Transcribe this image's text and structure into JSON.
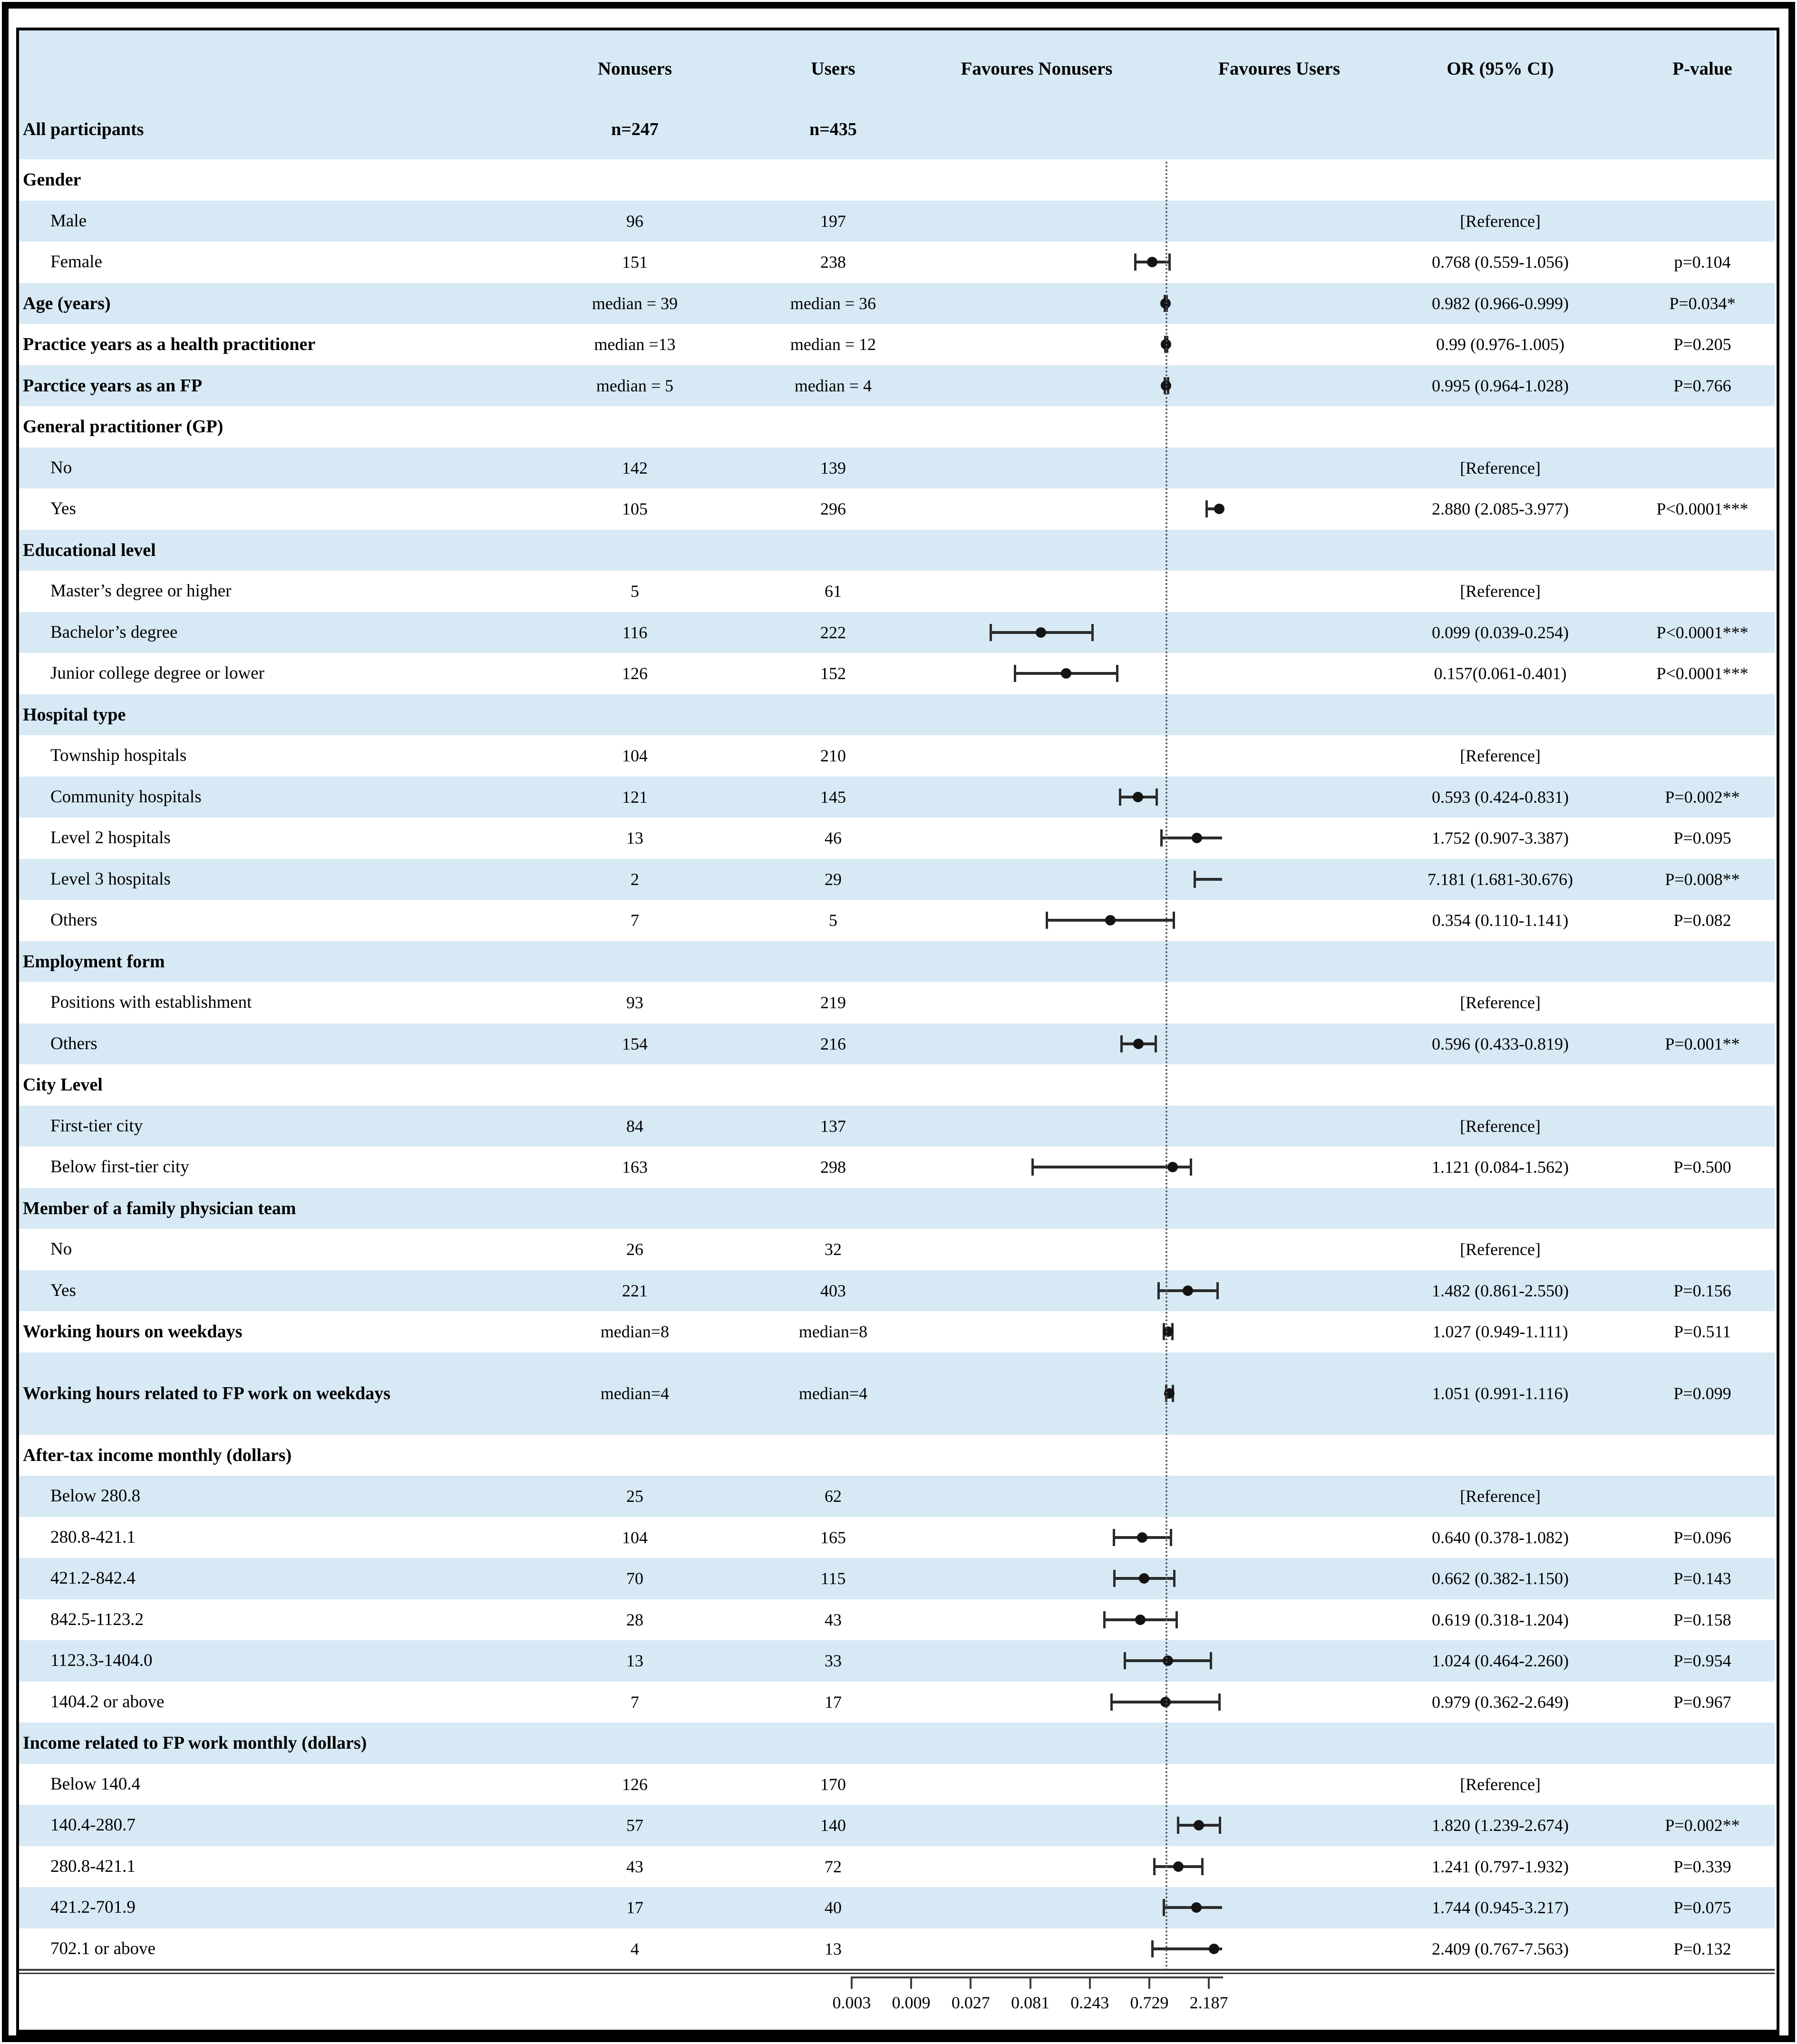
{
  "header": {
    "nonusers": "Nonusers",
    "users": "Users",
    "fav_nonusers": "Favoures Nonusers",
    "fav_users": "Favoures Users",
    "or_ci": "OR (95% CI)",
    "p": "P-value"
  },
  "all_participants": {
    "label": "All participants",
    "nonusers": "n=247",
    "users": "n=435"
  },
  "chart_data": {
    "type": "forest",
    "x_scale": "log3",
    "x_ticks": [
      0.003,
      0.009,
      0.027,
      0.081,
      0.243,
      0.729,
      2.187
    ],
    "x_tick_labels": [
      "0.003",
      "0.009",
      "0.027",
      "0.081",
      "0.243",
      "0.729",
      "2.187"
    ],
    "reference_line": 1.0,
    "favours_left_label": "Favoures Nonusers",
    "favours_right_label": "Favoures Users",
    "rows": [
      {
        "label": "Gender",
        "bold": true,
        "indent": false,
        "nonusers": "",
        "users": "",
        "or_text": "",
        "p_text": "",
        "est": null,
        "lo": null,
        "hi": null
      },
      {
        "label": "Male",
        "bold": false,
        "indent": true,
        "nonusers": "96",
        "users": "197",
        "or_text": "[Reference]",
        "p_text": "",
        "est": null,
        "lo": null,
        "hi": null
      },
      {
        "label": "Female",
        "bold": false,
        "indent": true,
        "nonusers": "151",
        "users": "238",
        "or_text": "0.768 (0.559-1.056)",
        "p_text": "p=0.104",
        "est": 0.768,
        "lo": 0.559,
        "hi": 1.056
      },
      {
        "label": "Age (years)",
        "bold": true,
        "indent": false,
        "nonusers": "median = 39",
        "users": "median = 36",
        "or_text": "0.982 (0.966-0.999)",
        "p_text": "P=0.034*",
        "est": 0.982,
        "lo": 0.966,
        "hi": 0.999
      },
      {
        "label": "Practice years as a health practitioner",
        "bold": true,
        "indent": false,
        "nonusers": "median =13",
        "users": "median = 12",
        "or_text": "0.99 (0.976-1.005)",
        "p_text": "P=0.205",
        "est": 0.99,
        "lo": 0.976,
        "hi": 1.005
      },
      {
        "label": "Parctice years as an FP",
        "bold": true,
        "indent": false,
        "nonusers": "median = 5",
        "users": "median = 4",
        "or_text": "0.995 (0.964-1.028)",
        "p_text": "P=0.766",
        "est": 0.995,
        "lo": 0.964,
        "hi": 1.028
      },
      {
        "label": "General practitioner (GP)",
        "bold": true,
        "indent": false,
        "nonusers": "",
        "users": "",
        "or_text": "",
        "p_text": "",
        "est": null,
        "lo": null,
        "hi": null
      },
      {
        "label": "No",
        "bold": false,
        "indent": true,
        "nonusers": "142",
        "users": "139",
        "or_text": "[Reference]",
        "p_text": "",
        "est": null,
        "lo": null,
        "hi": null
      },
      {
        "label": "Yes",
        "bold": false,
        "indent": true,
        "nonusers": "105",
        "users": "296",
        "or_text": "2.880 (2.085-3.977)",
        "p_text": "P<0.0001***",
        "est": 2.88,
        "lo": 2.085,
        "hi": 3.977
      },
      {
        "label": "Educational level",
        "bold": true,
        "indent": false,
        "nonusers": "",
        "users": "",
        "or_text": "",
        "p_text": "",
        "est": null,
        "lo": null,
        "hi": null
      },
      {
        "label": "Master’s degree or higher",
        "bold": false,
        "indent": true,
        "nonusers": "5",
        "users": "61",
        "or_text": "[Reference]",
        "p_text": "",
        "est": null,
        "lo": null,
        "hi": null
      },
      {
        "label": "Bachelor’s degree",
        "bold": false,
        "indent": true,
        "nonusers": "116",
        "users": "222",
        "or_text": "0.099 (0.039-0.254)",
        "p_text": "P<0.0001***",
        "est": 0.099,
        "lo": 0.039,
        "hi": 0.254
      },
      {
        "label": "Junior college degree or lower",
        "bold": false,
        "indent": true,
        "nonusers": "126",
        "users": "152",
        "or_text": "0.157(0.061-0.401)",
        "p_text": "P<0.0001***",
        "est": 0.157,
        "lo": 0.061,
        "hi": 0.401
      },
      {
        "label": "Hospital type",
        "bold": true,
        "indent": false,
        "nonusers": "",
        "users": "",
        "or_text": "",
        "p_text": "",
        "est": null,
        "lo": null,
        "hi": null
      },
      {
        "label": "Township hospitals",
        "bold": false,
        "indent": true,
        "nonusers": "104",
        "users": "210",
        "or_text": "[Reference]",
        "p_text": "",
        "est": null,
        "lo": null,
        "hi": null
      },
      {
        "label": "Community hospitals",
        "bold": false,
        "indent": true,
        "nonusers": "121",
        "users": "145",
        "or_text": "0.593 (0.424-0.831)",
        "p_text": "P=0.002**",
        "est": 0.593,
        "lo": 0.424,
        "hi": 0.831
      },
      {
        "label": "Level 2 hospitals",
        "bold": false,
        "indent": true,
        "nonusers": "13",
        "users": "46",
        "or_text": "1.752 (0.907-3.387)",
        "p_text": "P=0.095",
        "est": 1.752,
        "lo": 0.907,
        "hi": 3.387
      },
      {
        "label": "Level 3 hospitals",
        "bold": false,
        "indent": true,
        "nonusers": "2",
        "users": "29",
        "or_text": "7.181 (1.681-30.676)",
        "p_text": "P=0.008**",
        "est": 7.181,
        "lo": 1.681,
        "hi": 30.676
      },
      {
        "label": "Others",
        "bold": false,
        "indent": true,
        "nonusers": "7",
        "users": "5",
        "or_text": "0.354 (0.110-1.141)",
        "p_text": "P=0.082",
        "est": 0.354,
        "lo": 0.11,
        "hi": 1.141
      },
      {
        "label": "Employment form",
        "bold": true,
        "indent": false,
        "nonusers": "",
        "users": "",
        "or_text": "",
        "p_text": "",
        "est": null,
        "lo": null,
        "hi": null
      },
      {
        "label": "Positions with establishment",
        "bold": false,
        "indent": true,
        "nonusers": "93",
        "users": "219",
        "or_text": "[Reference]",
        "p_text": "",
        "est": null,
        "lo": null,
        "hi": null
      },
      {
        "label": "Others",
        "bold": false,
        "indent": true,
        "nonusers": "154",
        "users": "216",
        "or_text": "0.596 (0.433-0.819)",
        "p_text": "P=0.001**",
        "est": 0.596,
        "lo": 0.433,
        "hi": 0.819
      },
      {
        "label": "City Level",
        "bold": true,
        "indent": false,
        "nonusers": "",
        "users": "",
        "or_text": "",
        "p_text": "",
        "est": null,
        "lo": null,
        "hi": null
      },
      {
        "label": "First-tier city",
        "bold": false,
        "indent": true,
        "nonusers": "84",
        "users": "137",
        "or_text": "[Reference]",
        "p_text": "",
        "est": null,
        "lo": null,
        "hi": null
      },
      {
        "label": "Below first-tier city",
        "bold": false,
        "indent": true,
        "nonusers": "163",
        "users": "298",
        "or_text": "1.121 (0.084-1.562)",
        "p_text": "P=0.500",
        "est": 1.121,
        "lo": 0.084,
        "hi": 1.562
      },
      {
        "label": "Member of a family physician team",
        "bold": true,
        "indent": false,
        "nonusers": "",
        "users": "",
        "or_text": "",
        "p_text": "",
        "est": null,
        "lo": null,
        "hi": null
      },
      {
        "label": "No",
        "bold": false,
        "indent": true,
        "nonusers": "26",
        "users": "32",
        "or_text": "[Reference]",
        "p_text": "",
        "est": null,
        "lo": null,
        "hi": null
      },
      {
        "label": "Yes",
        "bold": false,
        "indent": true,
        "nonusers": "221",
        "users": "403",
        "or_text": "1.482 (0.861-2.550)",
        "p_text": "P=0.156",
        "est": 1.482,
        "lo": 0.861,
        "hi": 2.55
      },
      {
        "label": "Working hours on weekdays",
        "bold": true,
        "indent": false,
        "nonusers": "median=8",
        "users": "median=8",
        "or_text": "1.027 (0.949-1.111)",
        "p_text": "P=0.511",
        "est": 1.027,
        "lo": 0.949,
        "hi": 1.111
      },
      {
        "label": "Working hours related to FP work  on weekdays",
        "bold": true,
        "indent": false,
        "tall": true,
        "nonusers": "median=4",
        "users": "median=4",
        "or_text": "1.051 (0.991-1.116)",
        "p_text": "P=0.099",
        "est": 1.051,
        "lo": 0.991,
        "hi": 1.116
      },
      {
        "label": "After-tax income monthly (dollars)",
        "bold": true,
        "indent": false,
        "nonusers": "",
        "users": "",
        "or_text": "",
        "p_text": "",
        "est": null,
        "lo": null,
        "hi": null
      },
      {
        "label": "Below 280.8",
        "bold": false,
        "indent": true,
        "nonusers": "25",
        "users": "62",
        "or_text": "[Reference]",
        "p_text": "",
        "est": null,
        "lo": null,
        "hi": null
      },
      {
        "label": "280.8-421.1",
        "bold": false,
        "indent": true,
        "nonusers": "104",
        "users": "165",
        "or_text": "0.640 (0.378-1.082)",
        "p_text": "P=0.096",
        "est": 0.64,
        "lo": 0.378,
        "hi": 1.082
      },
      {
        "label": "421.2-842.4",
        "bold": false,
        "indent": true,
        "nonusers": "70",
        "users": "115",
        "or_text": "0.662 (0.382-1.150)",
        "p_text": "P=0.143",
        "est": 0.662,
        "lo": 0.382,
        "hi": 1.15
      },
      {
        "label": "842.5-1123.2",
        "bold": false,
        "indent": true,
        "nonusers": "28",
        "users": "43",
        "or_text": "0.619 (0.318-1.204)",
        "p_text": "P=0.158",
        "est": 0.619,
        "lo": 0.318,
        "hi": 1.204
      },
      {
        "label": "1123.3-1404.0",
        "bold": false,
        "indent": true,
        "nonusers": "13",
        "users": "33",
        "or_text": "1.024 (0.464-2.260)",
        "p_text": "P=0.954",
        "est": 1.024,
        "lo": 0.464,
        "hi": 2.26
      },
      {
        "label": "1404.2 or above",
        "bold": false,
        "indent": true,
        "nonusers": "7",
        "users": "17",
        "or_text": "0.979 (0.362-2.649)",
        "p_text": "P=0.967",
        "est": 0.979,
        "lo": 0.362,
        "hi": 2.649
      },
      {
        "label": "Income related to FP work monthly (dollars)",
        "bold": true,
        "indent": false,
        "nonusers": "",
        "users": "",
        "or_text": "",
        "p_text": "",
        "est": null,
        "lo": null,
        "hi": null
      },
      {
        "label": "Below 140.4",
        "bold": false,
        "indent": true,
        "nonusers": "126",
        "users": "170",
        "or_text": "[Reference]",
        "p_text": "",
        "est": null,
        "lo": null,
        "hi": null
      },
      {
        "label": "140.4-280.7",
        "bold": false,
        "indent": true,
        "nonusers": "57",
        "users": "140",
        "or_text": "1.820 (1.239-2.674)",
        "p_text": "P=0.002**",
        "est": 1.82,
        "lo": 1.239,
        "hi": 2.674
      },
      {
        "label": "280.8-421.1",
        "bold": false,
        "indent": true,
        "nonusers": "43",
        "users": "72",
        "or_text": "1.241 (0.797-1.932)",
        "p_text": "P=0.339",
        "est": 1.241,
        "lo": 0.797,
        "hi": 1.932
      },
      {
        "label": "421.2-701.9",
        "bold": false,
        "indent": true,
        "nonusers": "17",
        "users": "40",
        "or_text": "1.744 (0.945-3.217)",
        "p_text": "P=0.075",
        "est": 1.744,
        "lo": 0.945,
        "hi": 3.217
      },
      {
        "label": "702.1 or above",
        "bold": false,
        "indent": true,
        "nonusers": "4",
        "users": "13",
        "or_text": "2.409 (0.767-7.563)",
        "p_text": "P=0.132",
        "est": 2.409,
        "lo": 0.767,
        "hi": 7.563
      }
    ]
  },
  "colors": {
    "stripe": "#d7e9f5",
    "text": "#000000",
    "marker": "#141414",
    "axis": "#3c3c3c",
    "frame": "#000000"
  }
}
